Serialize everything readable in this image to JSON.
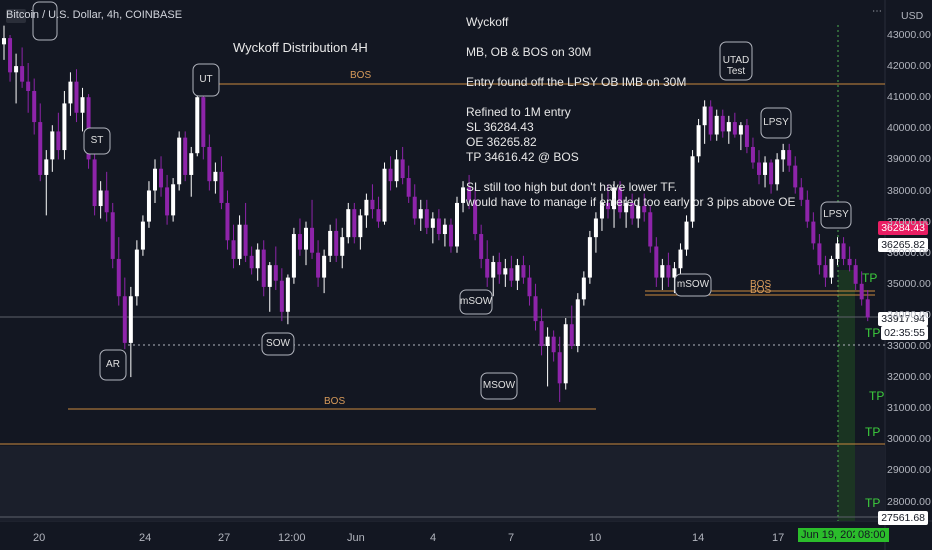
{
  "header": {
    "symbol": "Bitcoin / U.S. Dollar, 4h, COINBASE",
    "currency": "USD"
  },
  "title": "Wyckoff Distribution 4H",
  "notes": [
    "Wyckoff",
    "",
    "MB, OB & BOS on 30M",
    "",
    "Entry found off the LPSY OB IMB on 30M",
    "",
    "Refined to 1M entry",
    "SL 36284.43",
    "OE 36265.82",
    "TP 34616.42 @ BOS",
    "",
    "SL still too high but don't have lower TF.",
    "would have to manage if entered too early or 3 pips above OE"
  ],
  "price_tags": {
    "sl": "36284.43",
    "oe": "36265.82",
    "current": "33917.94",
    "countdown": "02:35:55",
    "low": "27561.68"
  },
  "x_axis": {
    "labels": [
      "20",
      "24",
      "27",
      "12:00",
      "Jun",
      "4",
      "7",
      "10",
      "14",
      "17",
      "Jun 19, 2021",
      "08:00"
    ]
  },
  "y_axis": {
    "labels": [
      "43000.00",
      "42000.00",
      "41000.00",
      "40000.00",
      "39000.00",
      "38000.00",
      "37000.00",
      "36000.00",
      "35000.00",
      "34000.00",
      "33000.00",
      "32000.00",
      "31000.00",
      "30000.00",
      "29000.00",
      "28000.00"
    ]
  },
  "annotations": [
    "ST",
    "AR",
    "UT",
    "SOW",
    "mSOW",
    "MSOW",
    "mSOW",
    "UTAD Test",
    "LPSY",
    "LPSY"
  ],
  "bos_labels": [
    "BOS",
    "BOS",
    "BOS",
    "BOS"
  ],
  "tp_labels": [
    "TP",
    "TP",
    "TP",
    "TP",
    "TP"
  ],
  "colors": {
    "background": "#131722",
    "bull": "#ffffff",
    "bear": "#8e24aa",
    "bos_line": "#c8893f",
    "tp_zone": "#1c3a22",
    "sl_tag": "#e91e63",
    "tag_white": "#ffffff"
  },
  "chart_data": {
    "type": "candlestick",
    "title": "Wyckoff Distribution 4H",
    "ylim": [
      27400,
      43500
    ],
    "candles": [
      [
        42700,
        43300,
        42200,
        42900
      ],
      [
        42900,
        43000,
        41500,
        41800
      ],
      [
        41800,
        42400,
        40800,
        42000
      ],
      [
        42000,
        42600,
        41300,
        41500
      ],
      [
        41500,
        42100,
        40500,
        41200
      ],
      [
        41200,
        41600,
        39800,
        40200
      ],
      [
        40200,
        40800,
        38300,
        38500
      ],
      [
        38500,
        39300,
        37200,
        39000
      ],
      [
        39000,
        40100,
        38600,
        39900
      ],
      [
        39900,
        40500,
        39000,
        39300
      ],
      [
        39300,
        41200,
        39000,
        40800
      ],
      [
        40800,
        41800,
        40400,
        41500
      ],
      [
        41500,
        41900,
        40200,
        40500
      ],
      [
        40500,
        41300,
        39900,
        41000
      ],
      [
        41000,
        41100,
        38700,
        39000
      ],
      [
        39000,
        39500,
        37200,
        37500
      ],
      [
        37500,
        38300,
        37100,
        38000
      ],
      [
        38000,
        38600,
        37000,
        37300
      ],
      [
        37300,
        37600,
        35500,
        35800
      ],
      [
        35800,
        36500,
        34300,
        34600
      ],
      [
        34600,
        35200,
        32900,
        33100
      ],
      [
        33100,
        34900,
        32000,
        34600
      ],
      [
        34600,
        36400,
        34300,
        36100
      ],
      [
        36100,
        37200,
        35900,
        37000
      ],
      [
        37000,
        38300,
        36800,
        38000
      ],
      [
        38000,
        39000,
        37600,
        38700
      ],
      [
        38700,
        39100,
        37800,
        38100
      ],
      [
        38100,
        38500,
        36900,
        37200
      ],
      [
        37200,
        38400,
        37000,
        38200
      ],
      [
        38200,
        39900,
        38000,
        39700
      ],
      [
        39700,
        39900,
        38300,
        38500
      ],
      [
        38500,
        39400,
        37800,
        39200
      ],
      [
        39200,
        41500,
        39100,
        41000
      ],
      [
        41000,
        41300,
        39000,
        39400
      ],
      [
        39400,
        39800,
        38000,
        38300
      ],
      [
        38300,
        38900,
        37900,
        38600
      ],
      [
        38600,
        39100,
        37400,
        37600
      ],
      [
        37600,
        38000,
        36100,
        36400
      ],
      [
        36400,
        36900,
        35500,
        35800
      ],
      [
        35800,
        37200,
        35600,
        36900
      ],
      [
        36900,
        37600,
        35700,
        35900
      ],
      [
        35900,
        36200,
        35300,
        35500
      ],
      [
        35500,
        36300,
        35100,
        36100
      ],
      [
        36100,
        36400,
        34600,
        34900
      ],
      [
        34900,
        35700,
        34100,
        35600
      ],
      [
        35600,
        36200,
        34800,
        35100
      ],
      [
        35100,
        35500,
        33800,
        34100
      ],
      [
        34100,
        35300,
        33700,
        35200
      ],
      [
        35200,
        36800,
        35000,
        36600
      ],
      [
        36600,
        37100,
        35900,
        36100
      ],
      [
        36100,
        37000,
        35600,
        36800
      ],
      [
        36800,
        37700,
        35800,
        36000
      ],
      [
        36000,
        36400,
        34900,
        35200
      ],
      [
        35200,
        36100,
        34700,
        35900
      ],
      [
        35900,
        36900,
        35700,
        36700
      ],
      [
        36700,
        37100,
        35700,
        35900
      ],
      [
        35900,
        36800,
        35500,
        36500
      ],
      [
        36500,
        37600,
        36300,
        37400
      ],
      [
        37400,
        37600,
        36300,
        36500
      ],
      [
        36500,
        37400,
        36100,
        37200
      ],
      [
        37200,
        37900,
        36800,
        37700
      ],
      [
        37700,
        38200,
        37100,
        37400
      ],
      [
        37400,
        37800,
        36800,
        37000
      ],
      [
        37000,
        38900,
        36900,
        38700
      ],
      [
        38700,
        39100,
        38000,
        38300
      ],
      [
        38300,
        39300,
        38100,
        39000
      ],
      [
        39000,
        39400,
        38200,
        38400
      ],
      [
        38400,
        38800,
        37600,
        37800
      ],
      [
        37800,
        38200,
        36900,
        37100
      ],
      [
        37100,
        37700,
        36700,
        37400
      ],
      [
        37400,
        37700,
        36600,
        36800
      ],
      [
        36800,
        37300,
        36300,
        37100
      ],
      [
        37100,
        37400,
        36400,
        36600
      ],
      [
        36600,
        37100,
        36200,
        36900
      ],
      [
        36900,
        37100,
        36000,
        36200
      ],
      [
        36200,
        37800,
        36000,
        37600
      ],
      [
        37600,
        38300,
        37300,
        38100
      ],
      [
        38100,
        38500,
        37400,
        37700
      ],
      [
        37700,
        38100,
        36400,
        36600
      ],
      [
        36600,
        36900,
        35500,
        35800
      ],
      [
        35800,
        36400,
        34900,
        35200
      ],
      [
        35200,
        35900,
        34600,
        35700
      ],
      [
        35700,
        36000,
        35000,
        35300
      ],
      [
        35300,
        35800,
        34900,
        35500
      ],
      [
        35500,
        35900,
        34900,
        35100
      ],
      [
        35100,
        35800,
        34800,
        35600
      ],
      [
        35600,
        35900,
        35000,
        35200
      ],
      [
        35200,
        35600,
        34300,
        34600
      ],
      [
        34600,
        35000,
        33500,
        33800
      ],
      [
        33800,
        34200,
        32700,
        33000
      ],
      [
        33000,
        33600,
        31700,
        33300
      ],
      [
        33300,
        33500,
        32500,
        32800
      ],
      [
        32800,
        33300,
        31200,
        31800
      ],
      [
        31800,
        33900,
        31600,
        33700
      ],
      [
        33700,
        34300,
        32900,
        33000
      ],
      [
        33000,
        34700,
        32800,
        34500
      ],
      [
        34500,
        35400,
        34300,
        35200
      ],
      [
        35200,
        36700,
        35000,
        36500
      ],
      [
        36500,
        37300,
        36000,
        37100
      ],
      [
        37100,
        37900,
        36700,
        37600
      ],
      [
        37600,
        38200,
        37100,
        37400
      ],
      [
        37400,
        38300,
        36800,
        38100
      ],
      [
        38100,
        38300,
        37100,
        37300
      ],
      [
        37300,
        37800,
        36800,
        37600
      ],
      [
        37600,
        37900,
        36900,
        37100
      ],
      [
        37100,
        37700,
        36800,
        37500
      ],
      [
        37500,
        37900,
        37000,
        37300
      ],
      [
        37300,
        37500,
        36000,
        36200
      ],
      [
        36200,
        36500,
        34900,
        35200
      ],
      [
        35200,
        35800,
        34800,
        35600
      ],
      [
        35600,
        36000,
        34900,
        35200
      ],
      [
        35200,
        35700,
        34700,
        35500
      ],
      [
        35500,
        36300,
        35300,
        36100
      ],
      [
        36100,
        37200,
        35900,
        37000
      ],
      [
        37000,
        39300,
        36800,
        39100
      ],
      [
        39100,
        40300,
        38900,
        40100
      ],
      [
        40100,
        40900,
        39500,
        40700
      ],
      [
        40700,
        40900,
        39600,
        39800
      ],
      [
        39800,
        40600,
        39600,
        40400
      ],
      [
        40400,
        40600,
        39700,
        39900
      ],
      [
        39900,
        40400,
        39500,
        40200
      ],
      [
        40200,
        40500,
        39700,
        39800
      ],
      [
        39800,
        40200,
        39300,
        40100
      ],
      [
        40100,
        40300,
        39200,
        39400
      ],
      [
        39400,
        39700,
        38700,
        38900
      ],
      [
        38900,
        39300,
        38200,
        38500
      ],
      [
        38500,
        39100,
        38100,
        38900
      ],
      [
        38900,
        39000,
        37900,
        38200
      ],
      [
        38200,
        39200,
        38000,
        39000
      ],
      [
        39000,
        39500,
        38600,
        39300
      ],
      [
        39300,
        39500,
        38600,
        38800
      ],
      [
        38800,
        39100,
        37900,
        38100
      ],
      [
        38100,
        38400,
        37500,
        37700
      ],
      [
        37700,
        38000,
        36800,
        37000
      ],
      [
        37000,
        37300,
        36100,
        36300
      ],
      [
        36300,
        36600,
        35300,
        35600
      ],
      [
        35600,
        35900,
        34900,
        35200
      ],
      [
        35200,
        35900,
        35000,
        35800
      ],
      [
        35800,
        36500,
        35600,
        36300
      ],
      [
        36300,
        36500,
        35600,
        35800
      ],
      [
        35800,
        36200,
        35400,
        35600
      ],
      [
        35600,
        35800,
        34800,
        35000
      ],
      [
        35000,
        35400,
        34300,
        34500
      ],
      [
        34500,
        34800,
        33800,
        33917
      ]
    ]
  }
}
